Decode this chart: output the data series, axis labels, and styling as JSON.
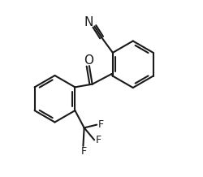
{
  "bg_color": "#ffffff",
  "line_color": "#1a1a1a",
  "line_width": 1.5,
  "figsize": [
    2.5,
    2.18
  ],
  "dpi": 100,
  "xlim": [
    0,
    10
  ],
  "ylim": [
    0,
    8.72
  ]
}
